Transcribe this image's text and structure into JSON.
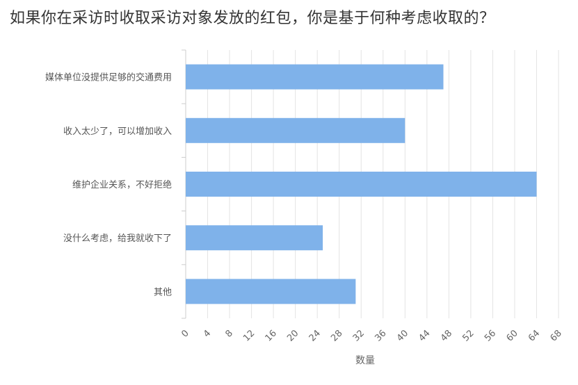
{
  "chart_data": {
    "type": "bar",
    "orientation": "horizontal",
    "title": "如果你在采访时收取采访对象发放的红包，你是基于何种考虑收取的？",
    "xlabel": "数量",
    "ylabel": "",
    "categories": [
      "媒体单位没提供足够的交通费用",
      "收入太少了，可以增加收入",
      "维护企业关系，不好拒绝",
      "没什么考虑，给我就收下了",
      "其他"
    ],
    "values": [
      47,
      40,
      64,
      25,
      31
    ],
    "xlim": [
      0,
      68
    ],
    "xticks": [
      0,
      4,
      8,
      12,
      16,
      20,
      24,
      28,
      32,
      36,
      40,
      44,
      48,
      52,
      56,
      60,
      64,
      68
    ],
    "grid": "vertical",
    "legend": "none",
    "colors": {
      "bar": "#7fb2ea",
      "grid": "#e3e3e3",
      "axis": "#cccccc"
    }
  }
}
